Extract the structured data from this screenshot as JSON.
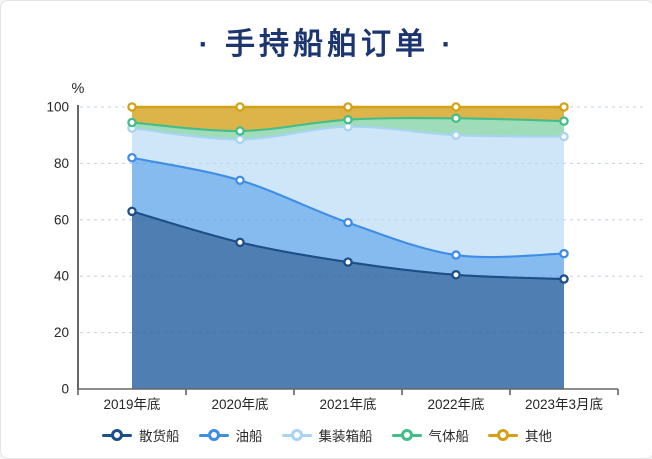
{
  "page": {
    "title": "· 手持船舶订单 ·"
  },
  "chart_data": {
    "type": "area",
    "variant": "percent-stacked-smooth",
    "title": "手持船舶订单",
    "ylabel": "%",
    "ylim": [
      0,
      100
    ],
    "yticks": [
      0,
      20,
      40,
      60,
      80,
      100
    ],
    "grid": "horizontal-dashed",
    "legend_position": "bottom",
    "categories": [
      "2019年底",
      "2020年底",
      "2021年底",
      "2022年底",
      "2023年3月底"
    ],
    "series": [
      {
        "name": "散货船",
        "values": [
          63,
          52,
          45,
          40.5,
          39
        ],
        "cumulative": [
          63,
          52,
          45,
          40.5,
          39
        ],
        "line_color": "#1d4e89",
        "fill_color": "#4e7eb2",
        "marker": "ring"
      },
      {
        "name": "油船",
        "values": [
          19,
          22,
          14,
          7,
          9
        ],
        "cumulative": [
          82,
          74,
          59,
          47.5,
          48
        ],
        "line_color": "#3e8ee8",
        "fill_color": "#85bbee",
        "marker": "ring"
      },
      {
        "name": "集装箱船",
        "values": [
          10.5,
          14.5,
          34,
          42.5,
          41.5
        ],
        "cumulative": [
          92.5,
          88.5,
          93,
          90,
          89.5
        ],
        "line_color": "#a9d3f2",
        "fill_color": "#cee6f8",
        "marker": "ring"
      },
      {
        "name": "气体船",
        "values": [
          2,
          3,
          2.5,
          6,
          5.5
        ],
        "cumulative": [
          94.5,
          91.5,
          95.5,
          96,
          95
        ],
        "line_color": "#43bd8b",
        "fill_color": "#9edcba",
        "marker": "ring"
      },
      {
        "name": "其他",
        "values": [
          5.5,
          8.5,
          4.5,
          4,
          5
        ],
        "cumulative": [
          100,
          100,
          100,
          100,
          100
        ],
        "line_color": "#d4a017",
        "fill_color": "#dcb44a",
        "marker": "ring"
      }
    ]
  },
  "colors": {
    "title": "#1a356f",
    "axis": "#666666",
    "tick_label": "#262626",
    "grid_light": "#d7e4f2",
    "grid_overlay": "rgba(20,50,100,0.10)",
    "background": "#ffffff",
    "border": "#e4e4e4"
  }
}
